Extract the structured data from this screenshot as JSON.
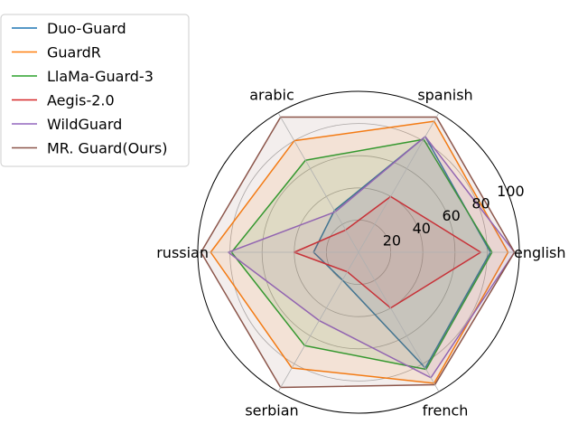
{
  "chart_data": {
    "type": "radar",
    "categories": [
      "english",
      "spanish",
      "arabic",
      "russian",
      "serbian",
      "french"
    ],
    "rticks": [
      20,
      40,
      60,
      80,
      100
    ],
    "rlim": [
      0,
      100
    ],
    "grid": true,
    "legend_position": "upper-left",
    "series": [
      {
        "name": "Duo-Guard",
        "color": "#1f77b4",
        "values": [
          82,
          83,
          30,
          28,
          20,
          83
        ]
      },
      {
        "name": "GuardR",
        "color": "#ff7f0e",
        "values": [
          93,
          94,
          80,
          92,
          83,
          94
        ]
      },
      {
        "name": "LlaMa-Guard-3",
        "color": "#2ca02c",
        "values": [
          83,
          81,
          66,
          79,
          67,
          84
        ]
      },
      {
        "name": "Aegis-2.0",
        "color": "#d62728",
        "values": [
          76,
          40,
          16,
          40,
          14,
          40
        ]
      },
      {
        "name": "WildGuard",
        "color": "#9467bd",
        "values": [
          97,
          83,
          29,
          81,
          49,
          90
        ]
      },
      {
        "name": "MR. Guard(Ours)",
        "color": "#8c564b",
        "values": [
          97,
          97,
          97,
          98,
          97,
          95
        ]
      }
    ]
  }
}
